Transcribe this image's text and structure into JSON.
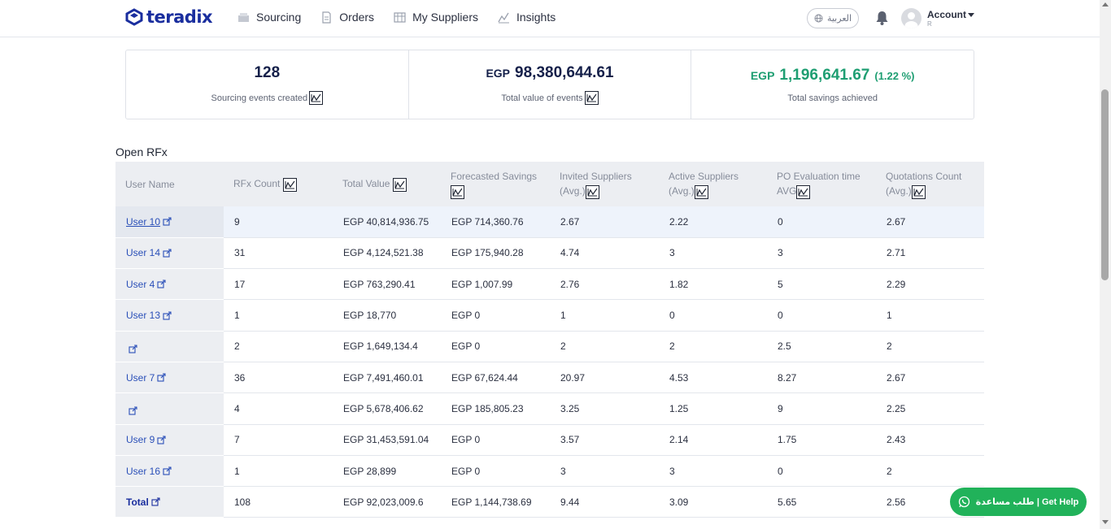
{
  "brand": {
    "name": "teradix"
  },
  "nav": [
    {
      "label": "Sourcing",
      "icon": "sourcing-icon"
    },
    {
      "label": "Orders",
      "icon": "orders-icon"
    },
    {
      "label": "My Suppliers",
      "icon": "suppliers-icon"
    },
    {
      "label": "Insights",
      "icon": "insights-icon"
    }
  ],
  "header": {
    "language": "العربية",
    "account_label": "Account",
    "account_sub": "R"
  },
  "stats": [
    {
      "currency": "",
      "value": "128",
      "percent": "",
      "label": "Sourcing events created"
    },
    {
      "currency": "EGP",
      "value": "98,380,644.61",
      "percent": "",
      "label": "Total value of events"
    },
    {
      "currency": "EGP",
      "value": "1,196,641.67",
      "percent": "(1.22 %)",
      "label": "Total savings achieved"
    }
  ],
  "section_title": "Open RFx",
  "table": {
    "headers": [
      [
        "User Name",
        ""
      ],
      [
        "RFx Count",
        ""
      ],
      [
        "Total Value",
        ""
      ],
      [
        "Forecasted Savings",
        ""
      ],
      [
        "Invited Suppliers",
        "(Avg.)"
      ],
      [
        "Active Suppliers",
        "(Avg.)"
      ],
      [
        "PO Evaluation time",
        "AVG"
      ],
      [
        "Quotations Count",
        "(Avg.)"
      ]
    ],
    "rows": [
      [
        "User 10",
        "9",
        "EGP 40,814,936.75",
        "EGP 714,360.76",
        "2.67",
        "2.22",
        "0",
        "2.67"
      ],
      [
        "User 14",
        "31",
        "EGP 4,124,521.38",
        "EGP 175,940.28",
        "4.74",
        "3",
        "3",
        "2.71"
      ],
      [
        "User 4",
        "17",
        "EGP 763,290.41",
        "EGP 1,007.99",
        "2.76",
        "1.82",
        "5",
        "2.29"
      ],
      [
        "User 13",
        "1",
        "EGP 18,770",
        "EGP 0",
        "1",
        "0",
        "0",
        "1"
      ],
      [
        "",
        "2",
        "EGP 1,649,134.4",
        "EGP 0",
        "2",
        "2",
        "2.5",
        "2"
      ],
      [
        "User 7",
        "36",
        "EGP 7,491,460.01",
        "EGP 67,624.44",
        "20.97",
        "4.53",
        "8.27",
        "2.67"
      ],
      [
        "",
        "4",
        "EGP 5,678,406.62",
        "EGP 185,805.23",
        "3.25",
        "1.25",
        "9",
        "2.25"
      ],
      [
        "User 9",
        "7",
        "EGP 31,453,591.04",
        "EGP 0",
        "3.57",
        "2.14",
        "1.75",
        "2.43"
      ],
      [
        "User 16",
        "1",
        "EGP 28,899",
        "EGP 0",
        "3",
        "3",
        "0",
        "2"
      ]
    ],
    "total": [
      "Total",
      "108",
      "EGP 92,023,009.6",
      "EGP 1,144,738.69",
      "9.44",
      "3.09",
      "5.65",
      "2.56"
    ]
  },
  "help_button": {
    "label": "طلب مساعدة | Get Help"
  },
  "colors": {
    "brand": "#1a2e9e",
    "savings_green": "#1e9e72",
    "whatsapp_green": "#21b25a"
  }
}
